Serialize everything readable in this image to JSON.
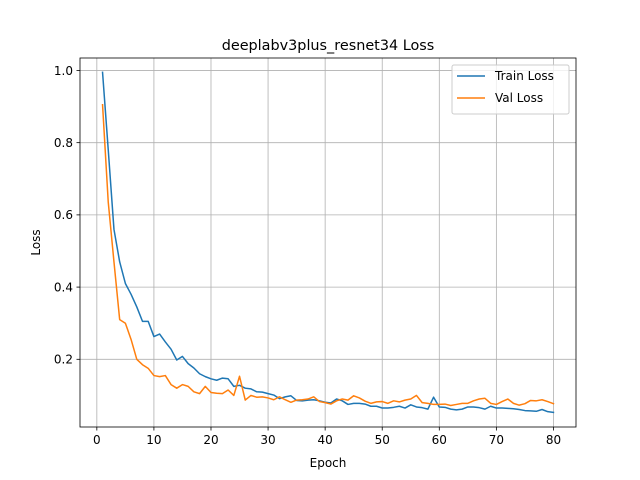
{
  "chart_data": {
    "type": "line",
    "title": "deeplabv3plus_resnet34 Loss",
    "xlabel": "Epoch",
    "ylabel": "Loss",
    "xlim": [
      -2.95,
      83.95
    ],
    "ylim": [
      0.0125,
      1.0345
    ],
    "xticks": [
      0,
      10,
      20,
      30,
      40,
      50,
      60,
      70,
      80
    ],
    "yticks": [
      0.2,
      0.4,
      0.6,
      0.8,
      1.0
    ],
    "xtick_labels": [
      "0",
      "10",
      "20",
      "30",
      "40",
      "50",
      "60",
      "70",
      "80"
    ],
    "ytick_labels": [
      "0.2",
      "0.4",
      "0.6",
      "0.8",
      "1.0"
    ],
    "grid": true,
    "legend_position": "top-right",
    "x": [
      1,
      2,
      3,
      4,
      5,
      6,
      7,
      8,
      9,
      10,
      11,
      12,
      13,
      14,
      15,
      16,
      17,
      18,
      19,
      20,
      21,
      22,
      23,
      24,
      25,
      26,
      27,
      28,
      29,
      30,
      31,
      32,
      33,
      34,
      35,
      36,
      37,
      38,
      39,
      40,
      41,
      42,
      43,
      44,
      45,
      46,
      47,
      48,
      49,
      50,
      51,
      52,
      53,
      54,
      55,
      56,
      57,
      58,
      59,
      60,
      61,
      62,
      63,
      64,
      65,
      66,
      67,
      68,
      69,
      70,
      71,
      72,
      73,
      74,
      75,
      76,
      77,
      78,
      79,
      80
    ],
    "series": [
      {
        "name": "Train Loss",
        "color": "#1f77b4",
        "values": [
          0.995,
          0.78,
          0.56,
          0.47,
          0.41,
          0.38,
          0.345,
          0.305,
          0.305,
          0.263,
          0.27,
          0.248,
          0.228,
          0.198,
          0.208,
          0.188,
          0.176,
          0.16,
          0.152,
          0.146,
          0.142,
          0.148,
          0.146,
          0.125,
          0.128,
          0.12,
          0.118,
          0.11,
          0.109,
          0.105,
          0.101,
          0.091,
          0.096,
          0.099,
          0.086,
          0.085,
          0.087,
          0.088,
          0.085,
          0.081,
          0.079,
          0.09,
          0.085,
          0.075,
          0.078,
          0.078,
          0.076,
          0.07,
          0.07,
          0.065,
          0.065,
          0.067,
          0.07,
          0.065,
          0.074,
          0.068,
          0.066,
          0.062,
          0.095,
          0.068,
          0.067,
          0.062,
          0.06,
          0.062,
          0.068,
          0.068,
          0.066,
          0.062,
          0.07,
          0.065,
          0.065,
          0.064,
          0.063,
          0.061,
          0.058,
          0.057,
          0.056,
          0.061,
          0.055,
          0.053
        ]
      },
      {
        "name": "Val Loss",
        "color": "#ff7f0e",
        "values": [
          0.905,
          0.635,
          0.47,
          0.31,
          0.3,
          0.255,
          0.2,
          0.185,
          0.175,
          0.155,
          0.152,
          0.155,
          0.13,
          0.12,
          0.13,
          0.125,
          0.11,
          0.105,
          0.125,
          0.108,
          0.106,
          0.105,
          0.115,
          0.1,
          0.153,
          0.087,
          0.1,
          0.095,
          0.096,
          0.093,
          0.088,
          0.096,
          0.088,
          0.081,
          0.087,
          0.088,
          0.09,
          0.096,
          0.083,
          0.08,
          0.076,
          0.085,
          0.09,
          0.087,
          0.099,
          0.093,
          0.084,
          0.078,
          0.082,
          0.083,
          0.078,
          0.085,
          0.082,
          0.087,
          0.09,
          0.1,
          0.08,
          0.078,
          0.075,
          0.075,
          0.076,
          0.072,
          0.075,
          0.078,
          0.078,
          0.085,
          0.09,
          0.092,
          0.078,
          0.075,
          0.083,
          0.09,
          0.078,
          0.073,
          0.077,
          0.086,
          0.085,
          0.088,
          0.083,
          0.077
        ]
      }
    ]
  }
}
